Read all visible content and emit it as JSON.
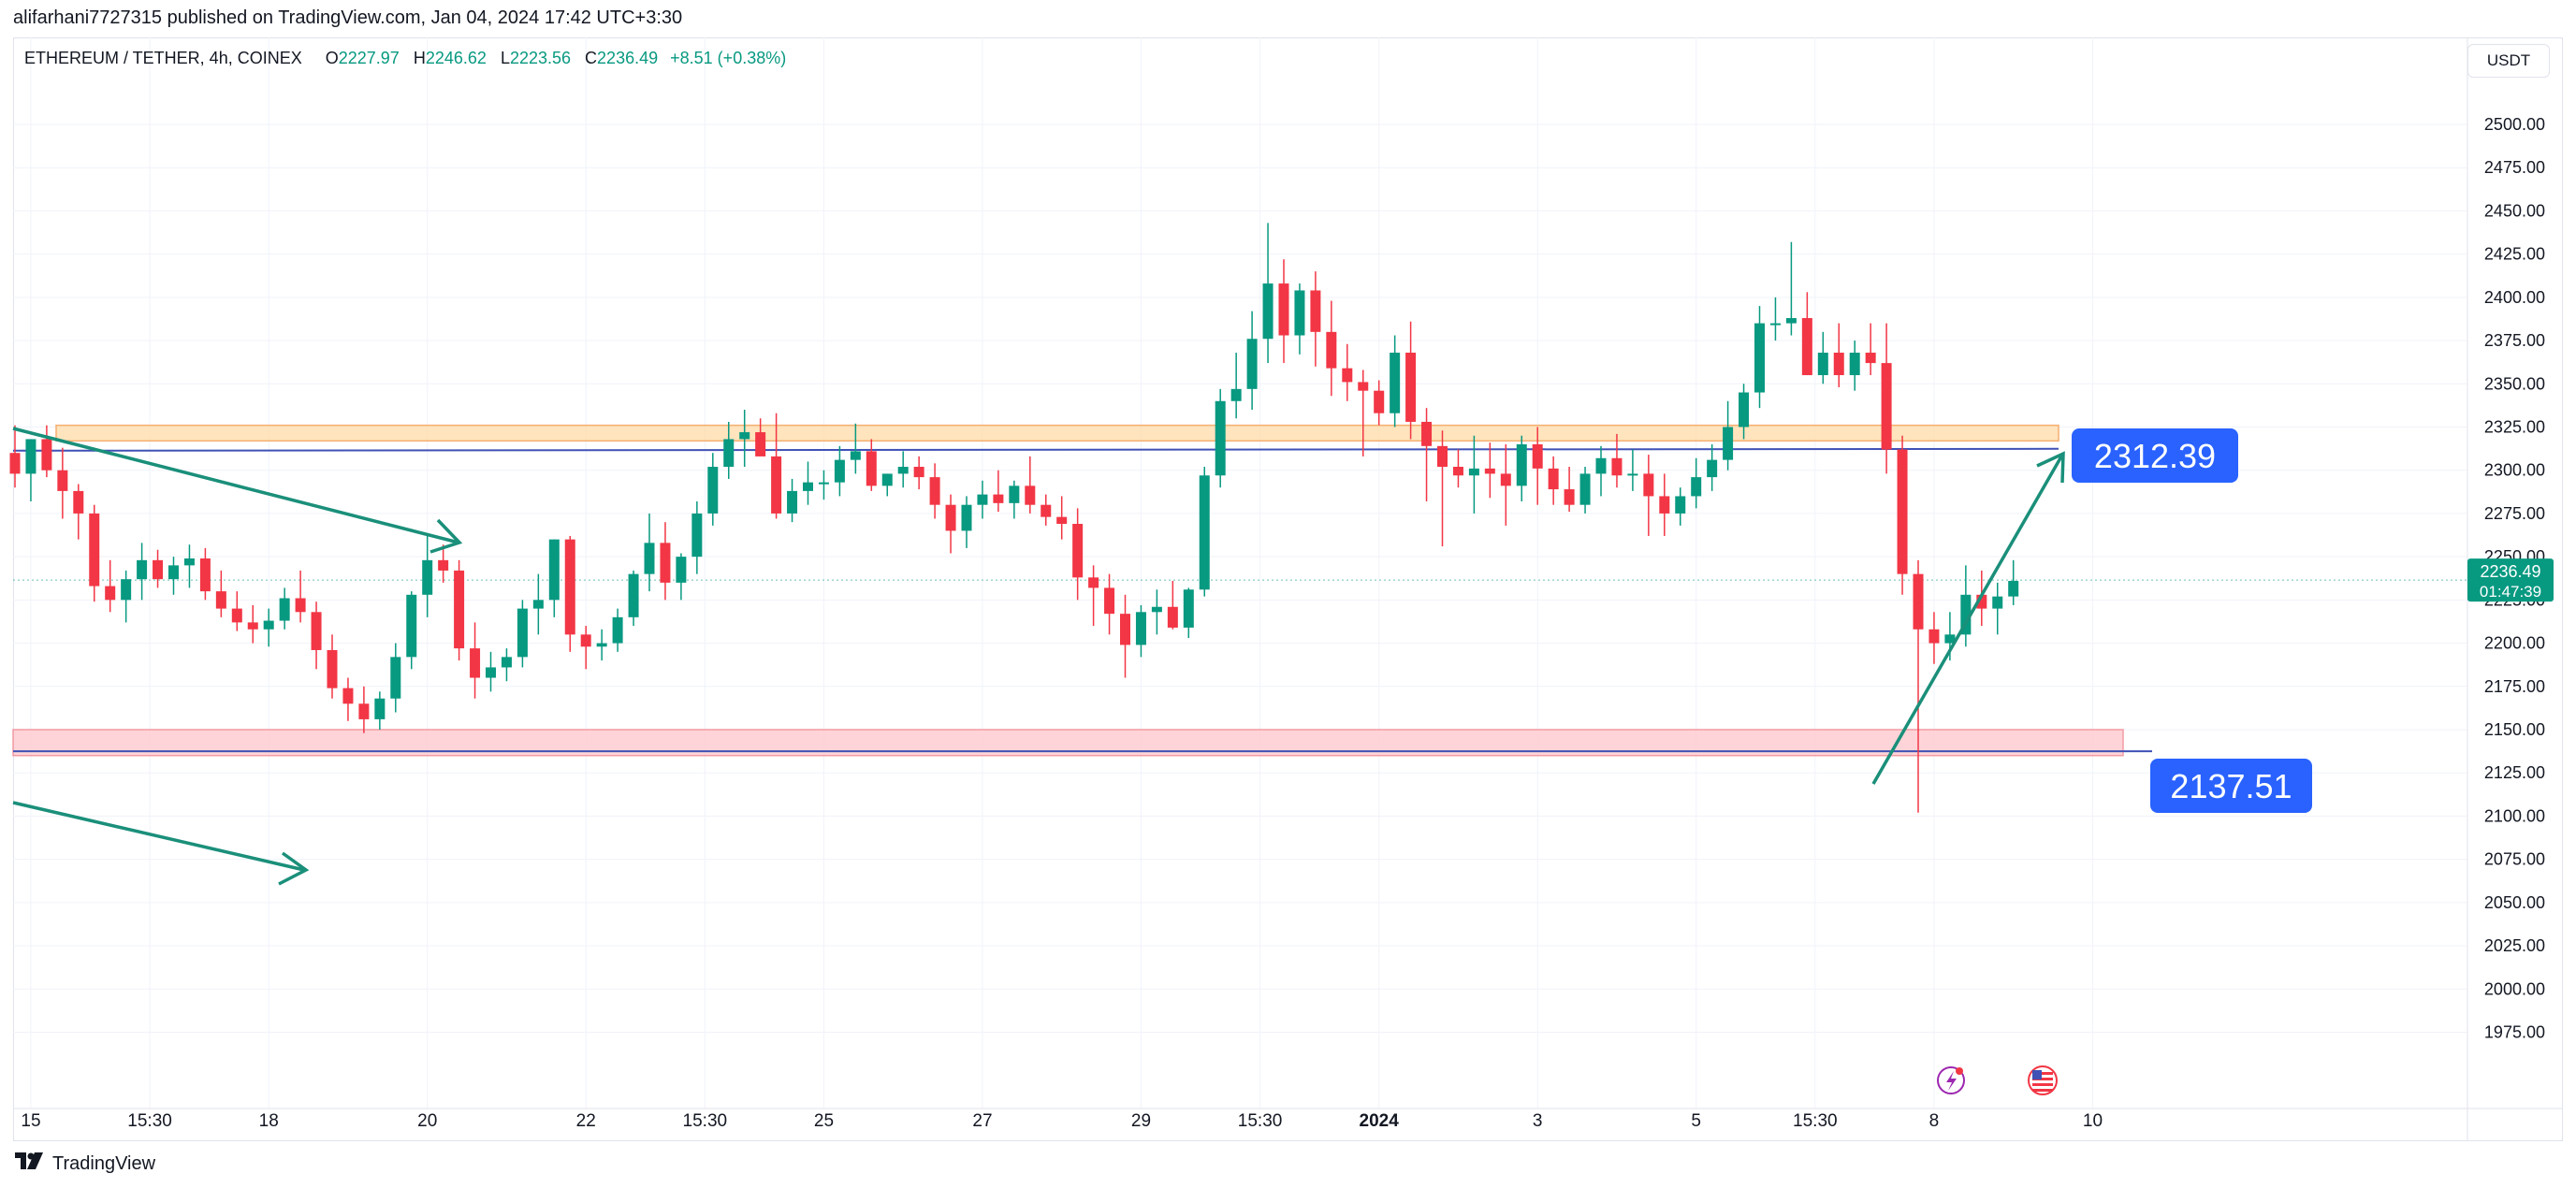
{
  "header": {
    "published_by": "alifarhani7727315 published on TradingView.com, Jan 04, 2024 17:42 UTC+3:30"
  },
  "legend": {
    "symbol": "ETHEREUM / TETHER, 4h, COINEX",
    "open_label": "O",
    "open": "2227.97",
    "high_label": "H",
    "high": "2246.62",
    "low_label": "L",
    "low": "2223.56",
    "close_label": "C",
    "close": "2236.49",
    "change": "+8.51 (+0.38%)"
  },
  "currency_button": "USDT",
  "footer": {
    "brand": "TradingView",
    "logo_icon": "tradingview-logo-icon"
  },
  "colors": {
    "up": "#089981",
    "down": "#f23645",
    "grid": "#f0f3fa",
    "annotation": "#1a8f7a",
    "resistance_fill": "#ffe0b2",
    "support_fill": "#ffcdd2",
    "level_line": "#3f51b5",
    "label_bg": "#2962ff"
  },
  "chart_data": {
    "type": "candlestick",
    "symbol": "ETHEREUM / TETHER",
    "interval": "4h",
    "exchange": "COINEX",
    "currency": "USDT",
    "y_range": [
      1958,
      2535
    ],
    "y_ticks": [
      "2500.00",
      "2475.00",
      "2450.00",
      "2425.00",
      "2400.00",
      "2375.00",
      "2350.00",
      "2325.00",
      "2300.00",
      "2275.00",
      "2250.00",
      "2225.00",
      "2200.00",
      "2175.00",
      "2150.00",
      "2125.00",
      "2100.00",
      "2075.00",
      "2050.00",
      "2025.00",
      "2000.00",
      "1975.00"
    ],
    "x_ticks": [
      {
        "label": "15",
        "bar": 1,
        "bold": false
      },
      {
        "label": "15:30",
        "bar": 8.5,
        "bold": false
      },
      {
        "label": "18",
        "bar": 16,
        "bold": false
      },
      {
        "label": "20",
        "bar": 26,
        "bold": false
      },
      {
        "label": "22",
        "bar": 36,
        "bold": false
      },
      {
        "label": "15:30",
        "bar": 43.5,
        "bold": false
      },
      {
        "label": "25",
        "bar": 51,
        "bold": false
      },
      {
        "label": "27",
        "bar": 61,
        "bold": false
      },
      {
        "label": "29",
        "bar": 71,
        "bold": false
      },
      {
        "label": "15:30",
        "bar": 78.5,
        "bold": false
      },
      {
        "label": "2024",
        "bar": 86,
        "bold": true
      },
      {
        "label": "3",
        "bar": 96,
        "bold": false
      },
      {
        "label": "5",
        "bar": 106,
        "bold": false
      },
      {
        "label": "15:30",
        "bar": 113.5,
        "bold": false
      },
      {
        "label": "8",
        "bar": 121,
        "bold": false
      },
      {
        "label": "10",
        "bar": 131,
        "bold": false
      }
    ],
    "current_price": {
      "value": 2236.49,
      "label": "2236.49",
      "countdown": "01:47:39"
    },
    "candles": [
      [
        2310,
        2326,
        2290,
        2298
      ],
      [
        2298,
        2318,
        2282,
        2318
      ],
      [
        2318,
        2326,
        2296,
        2300
      ],
      [
        2300,
        2313,
        2272,
        2288
      ],
      [
        2288,
        2292,
        2260,
        2275
      ],
      [
        2275,
        2280,
        2224,
        2233
      ],
      [
        2233,
        2248,
        2218,
        2225
      ],
      [
        2225,
        2242,
        2212,
        2237
      ],
      [
        2237,
        2258,
        2225,
        2248
      ],
      [
        2248,
        2254,
        2232,
        2237
      ],
      [
        2237,
        2250,
        2228,
        2245
      ],
      [
        2245,
        2257,
        2232,
        2249
      ],
      [
        2249,
        2255,
        2225,
        2230
      ],
      [
        2230,
        2242,
        2215,
        2220
      ],
      [
        2220,
        2230,
        2207,
        2212
      ],
      [
        2212,
        2222,
        2200,
        2208
      ],
      [
        2208,
        2220,
        2198,
        2213
      ],
      [
        2213,
        2232,
        2208,
        2226
      ],
      [
        2226,
        2242,
        2212,
        2218
      ],
      [
        2218,
        2224,
        2185,
        2196
      ],
      [
        2196,
        2205,
        2168,
        2174
      ],
      [
        2174,
        2180,
        2155,
        2165
      ],
      [
        2165,
        2175,
        2148,
        2156
      ],
      [
        2156,
        2172,
        2150,
        2168
      ],
      [
        2168,
        2200,
        2160,
        2192
      ],
      [
        2192,
        2230,
        2185,
        2228
      ],
      [
        2228,
        2262,
        2215,
        2248
      ],
      [
        2248,
        2257,
        2235,
        2242
      ],
      [
        2242,
        2248,
        2190,
        2197
      ],
      [
        2197,
        2212,
        2168,
        2180
      ],
      [
        2180,
        2195,
        2172,
        2186
      ],
      [
        2186,
        2197,
        2178,
        2192
      ],
      [
        2192,
        2225,
        2186,
        2220
      ],
      [
        2220,
        2240,
        2205,
        2225
      ],
      [
        2225,
        2260,
        2215,
        2260
      ],
      [
        2260,
        2262,
        2195,
        2205
      ],
      [
        2205,
        2210,
        2185,
        2198
      ],
      [
        2198,
        2208,
        2190,
        2200
      ],
      [
        2200,
        2220,
        2195,
        2215
      ],
      [
        2215,
        2242,
        2210,
        2240
      ],
      [
        2240,
        2275,
        2230,
        2258
      ],
      [
        2258,
        2270,
        2225,
        2235
      ],
      [
        2235,
        2252,
        2225,
        2250
      ],
      [
        2250,
        2282,
        2240,
        2275
      ],
      [
        2275,
        2310,
        2268,
        2302
      ],
      [
        2302,
        2328,
        2295,
        2318
      ],
      [
        2318,
        2335,
        2302,
        2322
      ],
      [
        2322,
        2330,
        2312,
        2308
      ],
      [
        2308,
        2333,
        2272,
        2275
      ],
      [
        2275,
        2295,
        2270,
        2288
      ],
      [
        2288,
        2305,
        2280,
        2293
      ],
      [
        2293,
        2300,
        2283,
        2293
      ],
      [
        2293,
        2314,
        2285,
        2306
      ],
      [
        2306,
        2327,
        2298,
        2311
      ],
      [
        2311,
        2318,
        2288,
        2291
      ],
      [
        2291,
        2298,
        2285,
        2298
      ],
      [
        2298,
        2311,
        2290,
        2302
      ],
      [
        2302,
        2308,
        2289,
        2296
      ],
      [
        2296,
        2304,
        2272,
        2280
      ],
      [
        2280,
        2286,
        2252,
        2265
      ],
      [
        2265,
        2285,
        2255,
        2280
      ],
      [
        2280,
        2294,
        2272,
        2286
      ],
      [
        2286,
        2300,
        2276,
        2281
      ],
      [
        2281,
        2294,
        2272,
        2291
      ],
      [
        2291,
        2308,
        2275,
        2280
      ],
      [
        2280,
        2286,
        2268,
        2273
      ],
      [
        2273,
        2285,
        2260,
        2269
      ],
      [
        2269,
        2278,
        2225,
        2238
      ],
      [
        2238,
        2245,
        2210,
        2232
      ],
      [
        2232,
        2240,
        2205,
        2217
      ],
      [
        2217,
        2228,
        2180,
        2199
      ],
      [
        2199,
        2222,
        2192,
        2218
      ],
      [
        2218,
        2231,
        2205,
        2221
      ],
      [
        2221,
        2236,
        2208,
        2209
      ],
      [
        2209,
        2232,
        2203,
        2231
      ],
      [
        2231,
        2302,
        2227,
        2297
      ],
      [
        2297,
        2347,
        2290,
        2340
      ],
      [
        2340,
        2368,
        2330,
        2347
      ],
      [
        2347,
        2392,
        2335,
        2376
      ],
      [
        2376,
        2443,
        2362,
        2408
      ],
      [
        2408,
        2422,
        2362,
        2378
      ],
      [
        2378,
        2408,
        2367,
        2404
      ],
      [
        2404,
        2415,
        2360,
        2380
      ],
      [
        2380,
        2398,
        2343,
        2359
      ],
      [
        2359,
        2373,
        2340,
        2351
      ],
      [
        2351,
        2358,
        2308,
        2346
      ],
      [
        2346,
        2352,
        2326,
        2333
      ],
      [
        2333,
        2378,
        2325,
        2368
      ],
      [
        2368,
        2386,
        2318,
        2328
      ],
      [
        2328,
        2336,
        2282,
        2314
      ],
      [
        2314,
        2323,
        2256,
        2302
      ],
      [
        2302,
        2312,
        2290,
        2297
      ],
      [
        2297,
        2320,
        2275,
        2301
      ],
      [
        2301,
        2316,
        2284,
        2298
      ],
      [
        2298,
        2315,
        2268,
        2291
      ],
      [
        2291,
        2320,
        2282,
        2315
      ],
      [
        2315,
        2325,
        2280,
        2301
      ],
      [
        2301,
        2308,
        2280,
        2289
      ],
      [
        2289,
        2302,
        2276,
        2280
      ],
      [
        2280,
        2302,
        2275,
        2298
      ],
      [
        2298,
        2314,
        2285,
        2307
      ],
      [
        2307,
        2321,
        2290,
        2297
      ],
      [
        2297,
        2312,
        2288,
        2298
      ],
      [
        2298,
        2309,
        2262,
        2285
      ],
      [
        2285,
        2298,
        2262,
        2275
      ],
      [
        2275,
        2290,
        2268,
        2285
      ],
      [
        2285,
        2307,
        2278,
        2296
      ],
      [
        2296,
        2315,
        2288,
        2306
      ],
      [
        2306,
        2340,
        2300,
        2325
      ],
      [
        2325,
        2350,
        2318,
        2345
      ],
      [
        2345,
        2395,
        2336,
        2385
      ],
      [
        2385,
        2400,
        2375,
        2385
      ],
      [
        2385,
        2432,
        2378,
        2388
      ],
      [
        2388,
        2403,
        2355,
        2355
      ],
      [
        2355,
        2380,
        2350,
        2368
      ],
      [
        2368,
        2385,
        2348,
        2355
      ],
      [
        2355,
        2375,
        2346,
        2368
      ],
      [
        2368,
        2385,
        2355,
        2362
      ],
      [
        2362,
        2385,
        2298,
        2312
      ],
      [
        2312,
        2320,
        2228,
        2240
      ],
      [
        2240,
        2248,
        2102,
        2208
      ],
      [
        2208,
        2218,
        2188,
        2200
      ],
      [
        2200,
        2218,
        2190,
        2205
      ],
      [
        2205,
        2245,
        2198,
        2228
      ],
      [
        2228,
        2242,
        2210,
        2220
      ],
      [
        2220,
        2235,
        2205,
        2227
      ],
      [
        2227,
        2248,
        2222,
        2236
      ]
    ],
    "levels": [
      {
        "price": 2312.39,
        "label": "2312.39"
      },
      {
        "price": 2137.51,
        "label": "2137.51"
      }
    ],
    "zones": [
      {
        "type": "resistance",
        "from": 2317,
        "to": 2326
      },
      {
        "type": "support",
        "from": 2135,
        "to": 2150
      }
    ]
  }
}
